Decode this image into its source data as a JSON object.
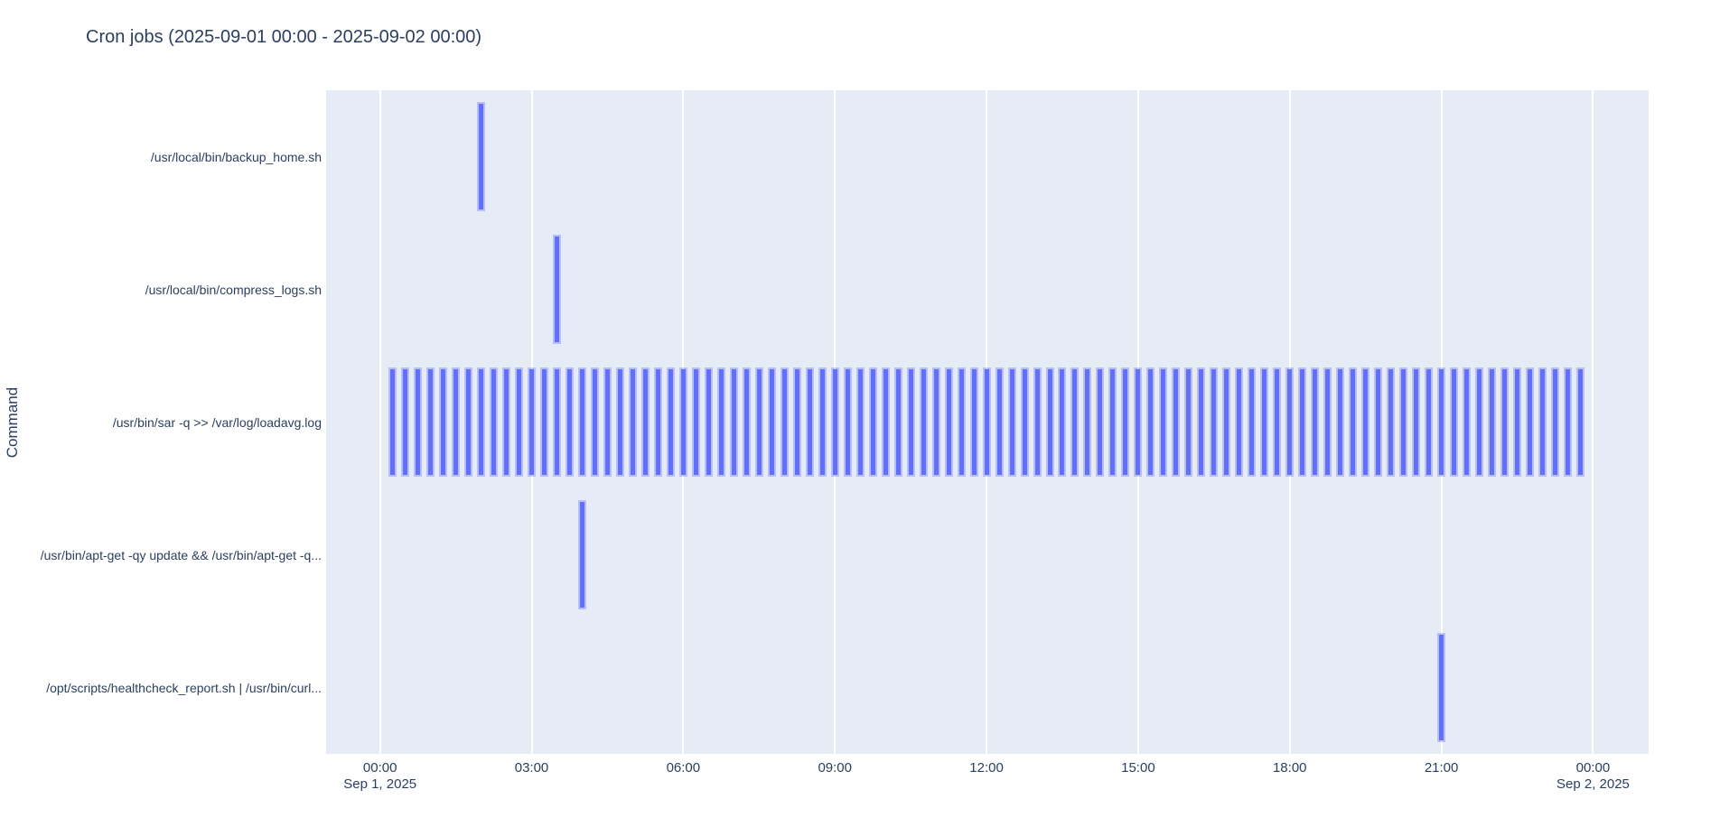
{
  "title": {
    "text": "Cron jobs (2025-09-01 00:00 - 2025-09-02 00:00)"
  },
  "chart_data": {
    "type": "bar",
    "subtype": "event-timeline-gantt",
    "title": "Cron jobs (2025-09-01 00:00 - 2025-09-02 00:00)",
    "xlabel": "",
    "ylabel": "Command",
    "legend": "none",
    "grid": "vertical white gridlines every 3 hours",
    "x_axis": {
      "range_minutes": [
        -64,
        1506
      ],
      "ticks": [
        {
          "label": "00:00",
          "minute": 0,
          "date": "Sep 1, 2025"
        },
        {
          "label": "03:00",
          "minute": 180
        },
        {
          "label": "06:00",
          "minute": 360
        },
        {
          "label": "09:00",
          "minute": 540
        },
        {
          "label": "12:00",
          "minute": 720
        },
        {
          "label": "15:00",
          "minute": 900
        },
        {
          "label": "18:00",
          "minute": 1080
        },
        {
          "label": "21:00",
          "minute": 1260
        },
        {
          "label": "00:00",
          "minute": 1440,
          "date": "Sep 2, 2025"
        }
      ]
    },
    "rows": [
      {
        "label": "/usr/local/bin/backup_home.sh",
        "events": [
          "02:00"
        ]
      },
      {
        "label": "/usr/local/bin/compress_logs.sh",
        "events": [
          "03:30"
        ]
      },
      {
        "label": "/usr/bin/sar -q >> /var/log/loadavg.log",
        "events": [],
        "repeat": {
          "start": "00:15",
          "end": "23:45",
          "every_minutes": 15
        }
      },
      {
        "label": "/usr/bin/apt-get -qy update && /usr/bin/apt-get -q...",
        "events": [
          "04:00"
        ]
      },
      {
        "label": "/opt/scripts/healthcheck_report.sh | /usr/bin/curl...",
        "events": [
          "21:00"
        ]
      }
    ],
    "colors": {
      "bar": "#636efa",
      "plot_background": "#e5ecf6",
      "gridline": "#ffffff",
      "text": "#2a3f5f",
      "page_background": "#ffffff"
    }
  }
}
